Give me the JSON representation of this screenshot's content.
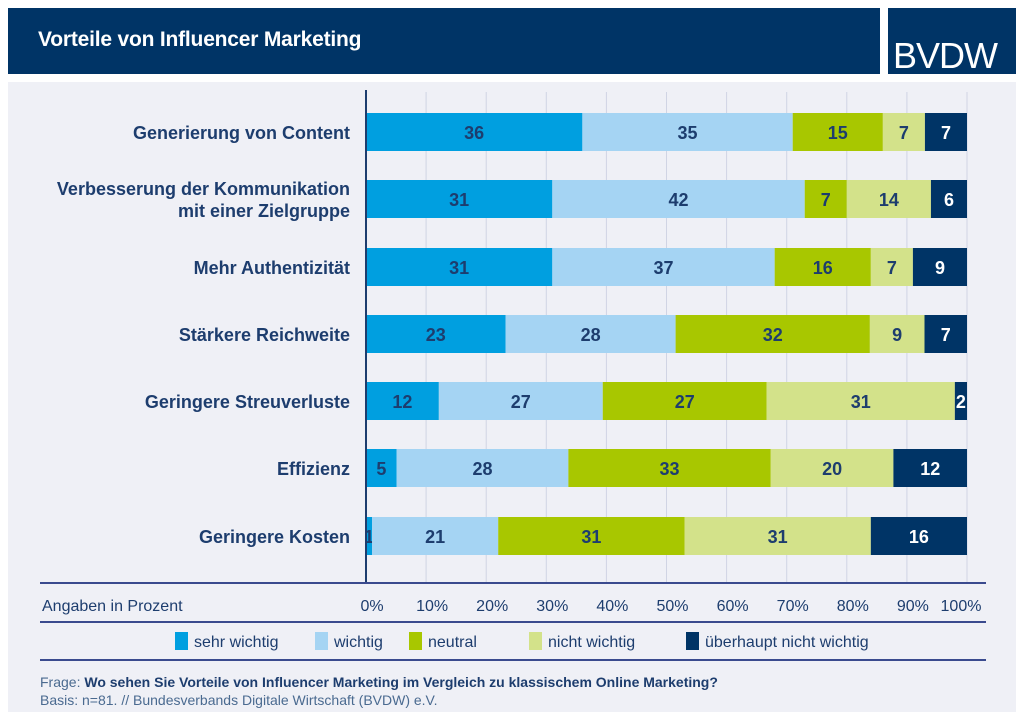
{
  "header": {
    "title": "Vorteile von Influencer Marketing",
    "logo": "BVDW"
  },
  "chart_data": {
    "type": "bar",
    "orientation": "horizontal",
    "stacked": true,
    "categories": [
      "Generierung von Content",
      "Verbesserung der Kommunikation mit einer Zielgruppe",
      "Mehr Authentizität",
      "Stärkere Reichweite",
      "Geringere Streuverluste",
      "Effizienz",
      "Geringere Kosten"
    ],
    "category_lines": [
      [
        "Generierung von Content"
      ],
      [
        "Verbesserung der Kommunikation",
        "mit einer Zielgruppe"
      ],
      [
        "Mehr Authentizität"
      ],
      [
        "Stärkere Reichweite"
      ],
      [
        "Geringere Streuverluste"
      ],
      [
        "Effizienz"
      ],
      [
        "Geringere Kosten"
      ]
    ],
    "series": [
      {
        "name": "sehr wichtig",
        "color": "#009fe0",
        "values": [
          36,
          31,
          31,
          23,
          12,
          5,
          1
        ]
      },
      {
        "name": "wichtig",
        "color": "#a5d4f3",
        "values": [
          35,
          42,
          37,
          28,
          27,
          28,
          21
        ]
      },
      {
        "name": "neutral",
        "color": "#a8c700",
        "values": [
          15,
          7,
          16,
          32,
          27,
          33,
          31
        ]
      },
      {
        "name": "nicht wichtig",
        "color": "#d3e28a",
        "values": [
          7,
          14,
          7,
          9,
          31,
          20,
          31
        ]
      },
      {
        "name": "überhaupt nicht wichtig",
        "color": "#003466",
        "values": [
          7,
          6,
          9,
          7,
          2,
          12,
          16
        ]
      }
    ],
    "xlabel": "Angaben in Prozent",
    "xticks": [
      "0%",
      "10%",
      "20%",
      "30%",
      "40%",
      "50%",
      "60%",
      "70%",
      "80%",
      "90%",
      "100%"
    ],
    "xlim": [
      0,
      100
    ],
    "grid": true,
    "legend": "bottom"
  },
  "footer": {
    "question_label": "Frage:",
    "question": "Wo sehen Sie Vorteile von Influencer Marketing im Vergleich zu klassischem Online Marketing?",
    "basis": "Basis: n=81. // Bundesverbands Digitale Wirtschaft (BVDW) e.V."
  }
}
